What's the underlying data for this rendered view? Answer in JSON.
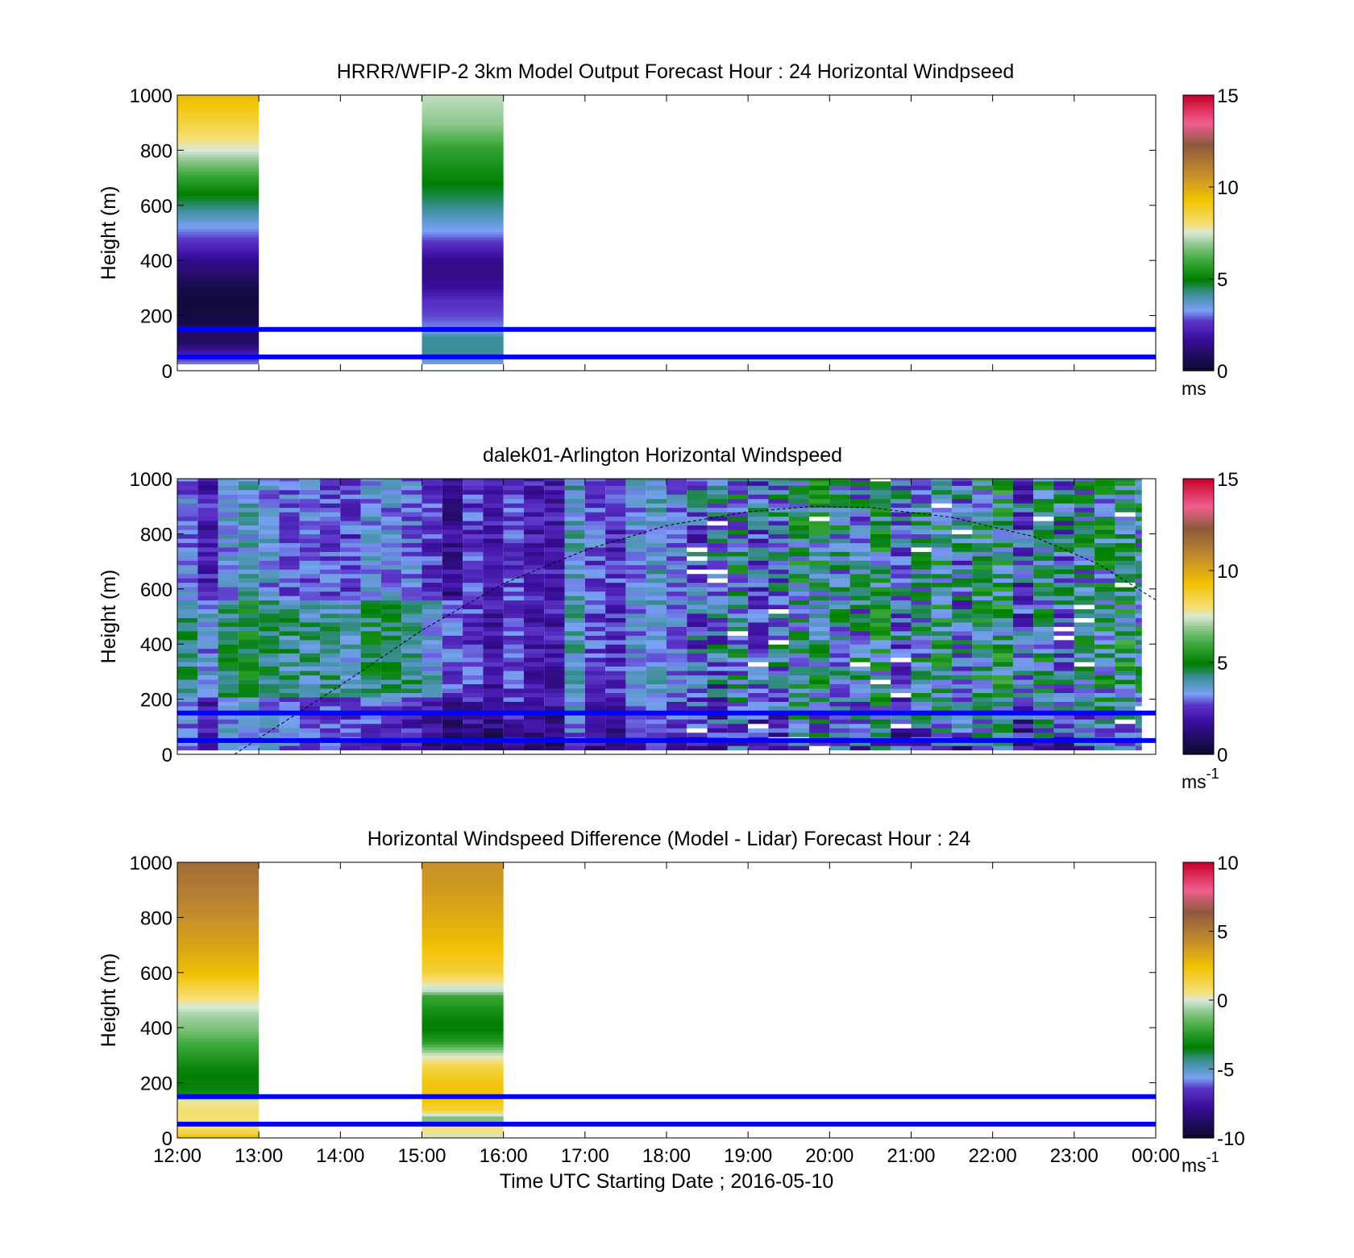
{
  "colormap_stops": [
    {
      "v": 0.0,
      "c": "#0a0a2a"
    },
    {
      "v": 0.12,
      "c": "#3b0e9e"
    },
    {
      "v": 0.18,
      "c": "#5a35c8"
    },
    {
      "v": 0.22,
      "c": "#7aa0f5"
    },
    {
      "v": 0.28,
      "c": "#3c8f9a"
    },
    {
      "v": 0.33,
      "c": "#007f00"
    },
    {
      "v": 0.4,
      "c": "#3aa83a"
    },
    {
      "v": 0.46,
      "c": "#8dc88d"
    },
    {
      "v": 0.5,
      "c": "#d8e8d8"
    },
    {
      "v": 0.53,
      "c": "#f5e07a"
    },
    {
      "v": 0.62,
      "c": "#f2c200"
    },
    {
      "v": 0.72,
      "c": "#c28a2e"
    },
    {
      "v": 0.82,
      "c": "#8c5a3c"
    },
    {
      "v": 0.9,
      "c": "#f06090"
    },
    {
      "v": 1.0,
      "c": "#c8002a"
    }
  ],
  "band_color": "#0000ff",
  "x_ticks": [
    "12:00",
    "13:00",
    "14:00",
    "15:00",
    "16:00",
    "17:00",
    "18:00",
    "19:00",
    "20:00",
    "21:00",
    "22:00",
    "23:00",
    "00:00"
  ],
  "y_ticks": [
    "0",
    "200",
    "400",
    "600",
    "800",
    "1000"
  ],
  "xlabel": "Time UTC  Starting Date ; 2016-05-10",
  "chart_data": [
    {
      "type": "heatmap",
      "title": "HRRR/WFIP-2 3km Model Output   Forecast Hour : 24 Horizontal Windpseed",
      "ylabel": "Height (m)",
      "xlim_hours": [
        12,
        24
      ],
      "ylim": [
        0,
        1000
      ],
      "clim": [
        0,
        15
      ],
      "colorbar_ticks": [
        "0",
        "5",
        "10",
        "15"
      ],
      "colorbar_unit": "ms",
      "colorbar_unit_sup": "",
      "reference_lines_m": [
        50,
        150
      ],
      "columns": [
        {
          "start": "12:00",
          "end": "13:00",
          "heights": [
            25,
            50,
            75,
            100,
            125,
            150,
            175,
            200,
            250,
            300,
            350,
            400,
            450,
            500,
            600,
            700,
            800,
            900,
            1000
          ],
          "values": [
            3.2,
            2.5,
            1.8,
            1.0,
            0.8,
            1.0,
            0.5,
            0.4,
            0.3,
            0.5,
            1.0,
            1.5,
            2.3,
            3.0,
            4.4,
            5.8,
            7.5,
            8.6,
            9.5
          ]
        },
        {
          "start": "15:00",
          "end": "16:00",
          "heights": [
            25,
            50,
            75,
            100,
            125,
            150,
            175,
            200,
            250,
            300,
            350,
            400,
            450,
            500,
            600,
            700,
            800,
            900,
            1000
          ],
          "values": [
            3.0,
            4.2,
            4.2,
            4.2,
            4.2,
            3.2,
            3.0,
            2.8,
            2.6,
            1.8,
            1.4,
            1.5,
            2.4,
            3.2,
            4.3,
            5.1,
            5.8,
            6.9,
            7.3
          ]
        }
      ]
    },
    {
      "type": "heatmap",
      "title": "dalek01-Arlington  Horizontal Windspeed",
      "ylabel": "Height (m)",
      "xlim_hours": [
        12,
        24
      ],
      "ylim": [
        0,
        1000
      ],
      "clim": [
        0,
        15
      ],
      "colorbar_ticks": [
        "0",
        "5",
        "10",
        "15"
      ],
      "colorbar_unit": "ms",
      "colorbar_unit_sup": "-1",
      "reference_lines_m": [
        50,
        150
      ],
      "coverage_hours": [
        12,
        23.83
      ],
      "bin_width_hours": 0.25,
      "range_gate_m": 16,
      "approx_column_means_ms": [
        [
          12.0,
          2.8
        ],
        [
          12.5,
          3.0
        ],
        [
          13.0,
          3.6
        ],
        [
          13.5,
          3.8
        ],
        [
          14.0,
          3.4
        ],
        [
          14.5,
          3.0
        ],
        [
          15.0,
          2.7
        ],
        [
          15.5,
          2.3
        ],
        [
          16.0,
          2.2
        ],
        [
          16.5,
          2.6
        ],
        [
          17.0,
          3.3
        ],
        [
          17.5,
          3.0
        ],
        [
          18.0,
          3.2
        ],
        [
          18.5,
          3.8
        ],
        [
          19.0,
          3.4
        ],
        [
          19.5,
          3.6
        ],
        [
          20.0,
          3.9
        ],
        [
          20.5,
          3.7
        ],
        [
          21.0,
          4.0
        ],
        [
          21.5,
          3.5
        ],
        [
          22.0,
          3.9
        ],
        [
          22.5,
          3.3
        ],
        [
          23.0,
          4.2
        ],
        [
          23.5,
          4.1
        ]
      ],
      "overlay_curve": {
        "style": "dashed",
        "color": "#000000",
        "points_hours_m": [
          [
            12.7,
            0
          ],
          [
            14,
            250
          ],
          [
            15,
            450
          ],
          [
            16,
            620
          ],
          [
            17,
            740
          ],
          [
            18,
            830
          ],
          [
            19,
            880
          ],
          [
            19.8,
            900
          ],
          [
            20.5,
            895
          ],
          [
            21.5,
            860
          ],
          [
            22.5,
            790
          ],
          [
            23.3,
            690
          ],
          [
            24,
            560
          ]
        ]
      }
    },
    {
      "type": "heatmap",
      "title": "Horizontal Windspeed Difference (Model - Lidar) Forecast Hour : 24",
      "ylabel": "Height (m)",
      "xlim_hours": [
        12,
        24
      ],
      "ylim": [
        0,
        1000
      ],
      "clim": [
        -10,
        10
      ],
      "colorbar_ticks": [
        "-10",
        "-5",
        "0",
        "5",
        "10"
      ],
      "colorbar_unit": "ms",
      "colorbar_unit_sup": "-1",
      "reference_lines_m": [
        50,
        150
      ],
      "columns": [
        {
          "start": "12:00",
          "end": "13:00",
          "heights": [
            0,
            30,
            60,
            100,
            140,
            160,
            200,
            250,
            300,
            350,
            400,
            450,
            500,
            550,
            600,
            700,
            800,
            900,
            1000
          ],
          "values": [
            2.5,
            1.0,
            0.5,
            0.8,
            0.2,
            -3.0,
            -3.5,
            -3.2,
            -2.5,
            -1.8,
            -1.0,
            -0.5,
            0.5,
            1.5,
            2.5,
            3.5,
            4.2,
            5.0,
            5.6
          ]
        },
        {
          "start": "15:00",
          "end": "16:00",
          "heights": [
            0,
            20,
            50,
            70,
            100,
            150,
            200,
            250,
            300,
            350,
            400,
            450,
            520,
            530,
            550,
            600,
            700,
            800,
            900,
            1000
          ],
          "values": [
            -0.2,
            0.5,
            0.5,
            -1.5,
            1.5,
            2.4,
            2.2,
            1.5,
            0.0,
            -2.5,
            -3.5,
            -3.0,
            -2.0,
            -0.3,
            0.0,
            1.5,
            2.5,
            3.2,
            3.8,
            4.2
          ]
        }
      ]
    }
  ]
}
